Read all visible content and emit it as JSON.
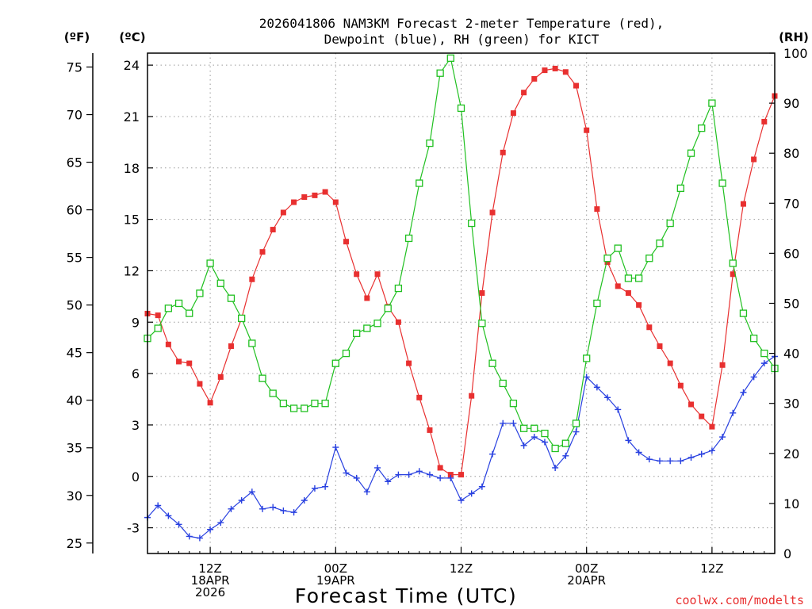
{
  "chart_data": {
    "type": "line",
    "title_line1": "2026041806 NAM3KM Forecast 2-meter Temperature (red),",
    "title_line2": "Dewpoint (blue), RH (green) for KICT",
    "xlabel": "Forecast Time (UTC)",
    "credit": "coolwx.com/modelts",
    "left_outer_unit": "(ºF)",
    "left_inner_unit": "(ºC)",
    "right_unit": "(RH)",
    "fahrenheit_ticks": [
      "25",
      "30",
      "35",
      "40",
      "45",
      "50",
      "55",
      "60",
      "65",
      "70",
      "75"
    ],
    "celsius_ticks": [
      "-3",
      "0",
      "3",
      "6",
      "9",
      "12",
      "15",
      "18",
      "21",
      "24"
    ],
    "rh_ticks": [
      "0",
      "10",
      "20",
      "30",
      "40",
      "50",
      "60",
      "70",
      "80",
      "90",
      "100"
    ],
    "x_ticks": [
      {
        "hour": 6,
        "lines": [
          "12Z",
          "18APR",
          "2026"
        ]
      },
      {
        "hour": 18,
        "lines": [
          "00Z",
          "19APR"
        ]
      },
      {
        "hour": 30,
        "lines": [
          "12Z"
        ]
      },
      {
        "hour": 42,
        "lines": [
          "00Z",
          "20APR"
        ]
      },
      {
        "hour": 54,
        "lines": [
          "12Z"
        ]
      }
    ],
    "x_range_hours": [
      0,
      60
    ],
    "y_range_celsius": [
      -4.5,
      24.7
    ],
    "y_range_rh": [
      0,
      100
    ],
    "series": [
      {
        "name": "Temperature",
        "color": "#e83030",
        "marker": "filled-square",
        "units": "C",
        "values": [
          9.5,
          9.4,
          7.7,
          6.7,
          6.6,
          5.4,
          4.3,
          5.8,
          7.6,
          9.2,
          11.5,
          13.1,
          14.4,
          15.4,
          16.0,
          16.3,
          16.4,
          16.6,
          16.0,
          13.7,
          11.8,
          10.4,
          11.8,
          9.9,
          9.0,
          6.6,
          4.6,
          2.7,
          0.5,
          0.1,
          0.1,
          4.7,
          10.7,
          15.4,
          18.9,
          21.2,
          22.4,
          23.2,
          23.7,
          23.8,
          23.6,
          22.8,
          20.2,
          15.6,
          12.5,
          11.1,
          10.7,
          10.0,
          8.7,
          7.6,
          6.6,
          5.3,
          4.2,
          3.5,
          2.9,
          6.5,
          11.8,
          15.9,
          18.5,
          20.7,
          22.2
        ]
      },
      {
        "name": "Dewpoint",
        "color": "#2840e0",
        "marker": "plus",
        "units": "C",
        "values": [
          -2.4,
          -1.7,
          -2.3,
          -2.8,
          -3.5,
          -3.6,
          -3.1,
          -2.7,
          -1.9,
          -1.4,
          -0.9,
          -1.9,
          -1.8,
          -2.0,
          -2.1,
          -1.4,
          -0.7,
          -0.6,
          1.7,
          0.2,
          -0.1,
          -0.9,
          0.5,
          -0.3,
          0.1,
          0.1,
          0.3,
          0.1,
          -0.1,
          -0.1,
          -1.4,
          -1.0,
          -0.6,
          1.3,
          3.1,
          3.1,
          1.8,
          2.3,
          2.0,
          0.5,
          1.2,
          2.6,
          5.8,
          5.2,
          4.6,
          3.9,
          2.1,
          1.4,
          1.0,
          0.9,
          0.9,
          0.9,
          1.1,
          1.3,
          1.5,
          2.3,
          3.7,
          4.9,
          5.8,
          6.6,
          7.0
        ]
      },
      {
        "name": "RH",
        "color": "#20c020",
        "marker": "open-square",
        "units": "%",
        "values": [
          43,
          45,
          49,
          50,
          48,
          52,
          58,
          54,
          51,
          47,
          42,
          35,
          32,
          30,
          29,
          29,
          30,
          30,
          38,
          40,
          44,
          45,
          46,
          49,
          53,
          63,
          74,
          82,
          96,
          99,
          89,
          66,
          46,
          38,
          34,
          30,
          25,
          25,
          24,
          21,
          22,
          26,
          39,
          50,
          59,
          61,
          55,
          55,
          59,
          62,
          66,
          73,
          80,
          85,
          90,
          74,
          58,
          48,
          43,
          40,
          37
        ]
      }
    ]
  }
}
